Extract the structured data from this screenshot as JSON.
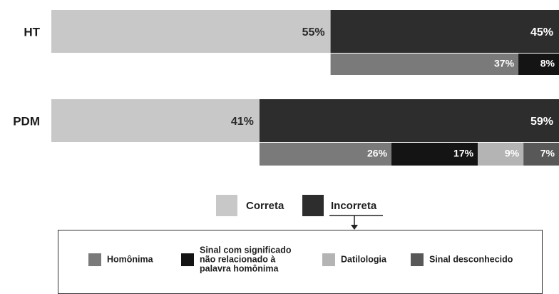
{
  "colors": {
    "correta": "#c8c8c8",
    "incorreta": "#2d2d2d",
    "homonima": "#7a7a7a",
    "sinal_sem_relacao": "#141414",
    "datilologia": "#b4b4b4",
    "sinal_desconhecido": "#585858"
  },
  "chart_data": {
    "type": "bar",
    "orientation": "horizontal-stacked-100",
    "title": "",
    "xlabel": "",
    "ylabel": "",
    "categories": [
      "HT",
      "PDM"
    ],
    "main_series": [
      {
        "key": "correta",
        "name": "Correta",
        "values": [
          55,
          41
        ],
        "labels": [
          "55%",
          "41%"
        ]
      },
      {
        "key": "incorreta",
        "name": "Incorreta",
        "values": [
          45,
          59
        ],
        "labels": [
          "45%",
          "59%"
        ]
      }
    ],
    "breakdown_of": "Incorreta",
    "breakdown_series": [
      {
        "key": "homonima",
        "name": "Homônima",
        "values": [
          37,
          26
        ],
        "labels": [
          "37%",
          "26%"
        ]
      },
      {
        "key": "sinal_sem_relacao",
        "name": "Sinal com significado não relacionado à palavra homônima",
        "values": [
          8,
          17
        ],
        "labels": [
          "8%",
          "17%"
        ]
      },
      {
        "key": "datilologia",
        "name": "Datilologia",
        "values": [
          0,
          9
        ],
        "labels": [
          "",
          "9%"
        ]
      },
      {
        "key": "sinal_desconhecido",
        "name": "Sinal desconhecido",
        "values": [
          0,
          7
        ],
        "labels": [
          "",
          "7%"
        ]
      }
    ],
    "xlim": [
      0,
      100
    ],
    "grid": false,
    "legend_top": {
      "items": [
        "Correta",
        "Incorreta"
      ]
    },
    "legend_bottom": {
      "items": [
        {
          "key": "homonima",
          "lines": [
            "Homônima"
          ]
        },
        {
          "key": "sinal_sem_relacao",
          "lines": [
            "Sinal com significado",
            "não relacionado à",
            "palavra homônima"
          ]
        },
        {
          "key": "datilologia",
          "lines": [
            "Datilologia"
          ]
        },
        {
          "key": "sinal_desconhecido",
          "lines": [
            "Sinal desconhecido"
          ]
        }
      ]
    }
  }
}
